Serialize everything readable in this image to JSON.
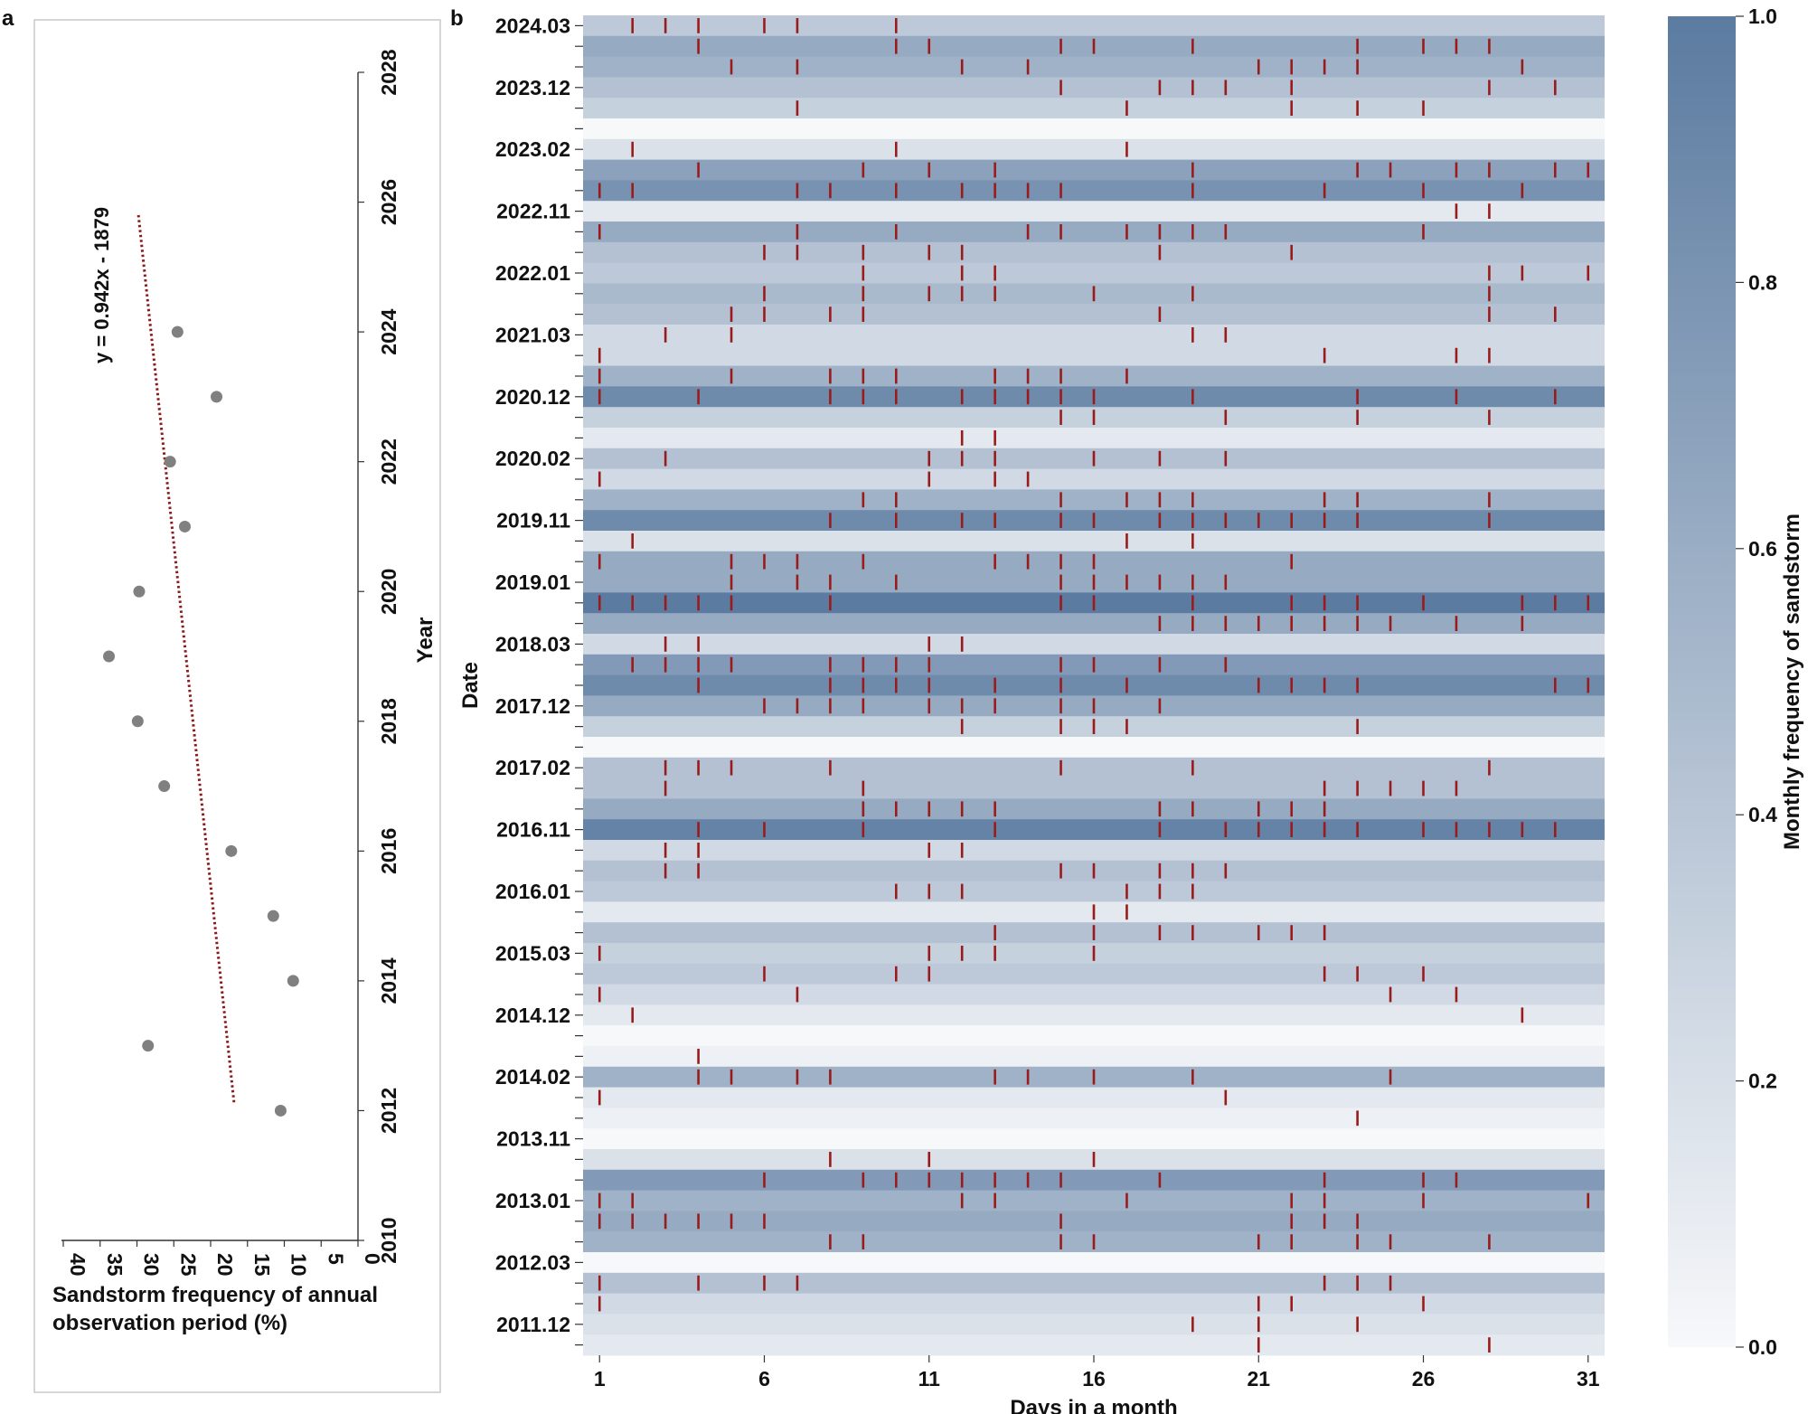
{
  "chart_data": [
    {
      "panel": "a",
      "type": "scatter",
      "xlabel_lines": [
        "Sandstorm frequency of annual",
        "observation period (%)"
      ],
      "ylabel": "Year",
      "xlim": [
        0,
        40
      ],
      "ylim": [
        2010,
        2028
      ],
      "x_reversed": true,
      "xticks": [
        "40",
        "35",
        "30",
        "25",
        "20",
        "15",
        "10",
        "5",
        "0"
      ],
      "yticks": [
        "2010",
        "2012",
        "2014",
        "2016",
        "2018",
        "2020",
        "2022",
        "2024",
        "2026",
        "2028"
      ],
      "points": [
        {
          "year": 2012,
          "value": 10.5
        },
        {
          "year": 2013,
          "value": 28.5
        },
        {
          "year": 2014,
          "value": 8.8
        },
        {
          "year": 2015,
          "value": 11.5
        },
        {
          "year": 2016,
          "value": 17.2
        },
        {
          "year": 2017,
          "value": 26.3
        },
        {
          "year": 2018,
          "value": 29.9
        },
        {
          "year": 2019,
          "value": 33.8
        },
        {
          "year": 2020,
          "value": 29.7
        },
        {
          "year": 2021,
          "value": 23.5
        },
        {
          "year": 2022,
          "value": 25.5
        },
        {
          "year": 2023,
          "value": 19.2
        },
        {
          "year": 2024,
          "value": 24.5
        }
      ],
      "trend": {
        "equation": "y = 0.942x - 1879",
        "x_start": 29.8,
        "y_start": 2025.8,
        "x_end": 16.8,
        "y_end": 2012.1,
        "color": "#8b1a1a"
      },
      "point_color": "#808080"
    },
    {
      "panel": "b",
      "type": "heatmap",
      "xlabel": "Days in a month",
      "ylabel": "Date",
      "xticks": [
        "1",
        "6",
        "11",
        "16",
        "21",
        "26",
        "31"
      ],
      "colorbar": {
        "label": "Monthly frequency of sandstorm",
        "ticks": [
          "0.0",
          "0.2",
          "0.4",
          "0.6",
          "0.8",
          "1.0"
        ],
        "color_low": "#f7f8fa",
        "color_high": "#5b7ba0"
      },
      "mark_color": "#9a1b1b",
      "rows": [
        {
          "label": "2024.03",
          "days": [
            2,
            3,
            4,
            6,
            7,
            10
          ]
        },
        {
          "label": "",
          "days": [
            4,
            10,
            11,
            15,
            16,
            19,
            24,
            26,
            27,
            28
          ]
        },
        {
          "label": "",
          "days": [
            5,
            7,
            12,
            14,
            21,
            22,
            23,
            24,
            29
          ]
        },
        {
          "label": "2023.12",
          "days": [
            15,
            18,
            19,
            20,
            22,
            28,
            30
          ]
        },
        {
          "label": "",
          "days": [
            7,
            17,
            22,
            24,
            26
          ]
        },
        {
          "label": "",
          "days": []
        },
        {
          "label": "2023.02",
          "days": [
            2,
            10,
            17
          ]
        },
        {
          "label": "",
          "days": [
            4,
            9,
            11,
            13,
            19,
            24,
            25,
            27,
            28,
            30,
            31
          ]
        },
        {
          "label": "",
          "days": [
            1,
            2,
            7,
            8,
            10,
            12,
            13,
            14,
            15,
            19,
            23,
            26,
            29
          ]
        },
        {
          "label": "2022.11",
          "days": [
            27,
            28
          ]
        },
        {
          "label": "",
          "days": [
            1,
            7,
            10,
            14,
            15,
            17,
            18,
            19,
            20,
            26
          ]
        },
        {
          "label": "",
          "days": [
            6,
            7,
            9,
            11,
            12,
            18,
            22
          ]
        },
        {
          "label": "2022.01",
          "days": [
            9,
            12,
            13,
            28,
            29,
            31
          ]
        },
        {
          "label": "",
          "days": [
            6,
            9,
            11,
            12,
            13,
            16,
            19,
            28
          ]
        },
        {
          "label": "",
          "days": [
            5,
            6,
            8,
            9,
            18,
            28,
            30
          ]
        },
        {
          "label": "2021.03",
          "days": [
            3,
            5,
            19,
            20
          ]
        },
        {
          "label": "",
          "days": [
            1,
            23,
            27,
            28
          ]
        },
        {
          "label": "",
          "days": [
            1,
            5,
            8,
            9,
            10,
            13,
            14,
            15,
            17
          ]
        },
        {
          "label": "2020.12",
          "days": [
            1,
            4,
            8,
            9,
            10,
            12,
            13,
            14,
            15,
            16,
            19,
            24,
            27,
            30
          ]
        },
        {
          "label": "",
          "days": [
            15,
            16,
            20,
            24,
            28
          ]
        },
        {
          "label": "",
          "days": [
            12,
            13
          ]
        },
        {
          "label": "2020.02",
          "days": [
            3,
            11,
            12,
            13,
            16,
            18,
            20
          ]
        },
        {
          "label": "",
          "days": [
            1,
            11,
            13,
            14
          ]
        },
        {
          "label": "",
          "days": [
            9,
            10,
            15,
            17,
            18,
            19,
            23,
            24,
            28
          ]
        },
        {
          "label": "2019.11",
          "days": [
            8,
            10,
            12,
            13,
            15,
            16,
            18,
            19,
            20,
            21,
            22,
            23,
            24,
            28
          ]
        },
        {
          "label": "",
          "days": [
            2,
            17,
            19
          ]
        },
        {
          "label": "",
          "days": [
            1,
            5,
            6,
            7,
            9,
            13,
            14,
            15,
            16,
            22
          ]
        },
        {
          "label": "2019.01",
          "days": [
            5,
            7,
            8,
            10,
            15,
            16,
            17,
            18,
            19,
            20
          ]
        },
        {
          "label": "",
          "days": [
            1,
            2,
            3,
            4,
            5,
            8,
            15,
            16,
            19,
            22,
            23,
            24,
            26,
            29,
            30,
            31
          ]
        },
        {
          "label": "",
          "days": [
            18,
            19,
            20,
            21,
            22,
            23,
            24,
            25,
            27,
            29
          ]
        },
        {
          "label": "2018.03",
          "days": [
            3,
            4,
            11,
            12
          ]
        },
        {
          "label": "",
          "days": [
            2,
            3,
            4,
            5,
            8,
            9,
            10,
            11,
            15,
            16,
            18,
            20
          ]
        },
        {
          "label": "",
          "days": [
            4,
            8,
            9,
            10,
            11,
            13,
            15,
            17,
            21,
            22,
            23,
            24,
            30,
            31
          ]
        },
        {
          "label": "2017.12",
          "days": [
            6,
            7,
            8,
            9,
            11,
            12,
            13,
            15,
            16,
            18
          ]
        },
        {
          "label": "",
          "days": [
            12,
            15,
            16,
            17,
            24
          ]
        },
        {
          "label": "",
          "days": []
        },
        {
          "label": "2017.02",
          "days": [
            3,
            4,
            5,
            8,
            15,
            19,
            28
          ]
        },
        {
          "label": "",
          "days": [
            3,
            9,
            23,
            24,
            25,
            26,
            27
          ]
        },
        {
          "label": "",
          "days": [
            9,
            10,
            11,
            12,
            13,
            18,
            19,
            21,
            22,
            23
          ]
        },
        {
          "label": "2016.11",
          "days": [
            4,
            6,
            9,
            13,
            18,
            20,
            21,
            22,
            23,
            24,
            26,
            27,
            28,
            29,
            30
          ]
        },
        {
          "label": "",
          "days": [
            3,
            4,
            11,
            12
          ]
        },
        {
          "label": "",
          "days": [
            3,
            4,
            15,
            16,
            18,
            19,
            20
          ]
        },
        {
          "label": "2016.01",
          "days": [
            10,
            11,
            12,
            17,
            18,
            19
          ]
        },
        {
          "label": "",
          "days": [
            16,
            17
          ]
        },
        {
          "label": "",
          "days": [
            13,
            16,
            18,
            19,
            21,
            22,
            23
          ]
        },
        {
          "label": "2015.03",
          "days": [
            1,
            11,
            12,
            13,
            16
          ]
        },
        {
          "label": "",
          "days": [
            6,
            10,
            11,
            23,
            24,
            26
          ]
        },
        {
          "label": "",
          "days": [
            1,
            7,
            25,
            27
          ]
        },
        {
          "label": "2014.12",
          "days": [
            2,
            29
          ]
        },
        {
          "label": "",
          "days": []
        },
        {
          "label": "",
          "days": [
            4
          ]
        },
        {
          "label": "2014.02",
          "days": [
            4,
            5,
            7,
            8,
            13,
            14,
            16,
            19,
            25
          ]
        },
        {
          "label": "",
          "days": [
            1,
            20
          ]
        },
        {
          "label": "",
          "days": [
            24
          ]
        },
        {
          "label": "2013.11",
          "days": []
        },
        {
          "label": "",
          "days": [
            8,
            11,
            16
          ]
        },
        {
          "label": "",
          "days": [
            6,
            9,
            10,
            11,
            12,
            13,
            14,
            15,
            18,
            23,
            26,
            27
          ]
        },
        {
          "label": "2013.01",
          "days": [
            1,
            2,
            12,
            13,
            17,
            22,
            23,
            26,
            31
          ]
        },
        {
          "label": "",
          "days": [
            1,
            2,
            3,
            4,
            5,
            6,
            15,
            22,
            23,
            24
          ]
        },
        {
          "label": "",
          "days": [
            8,
            9,
            15,
            16,
            21,
            22,
            24,
            25,
            28
          ]
        },
        {
          "label": "2012.03",
          "days": []
        },
        {
          "label": "",
          "days": [
            1,
            4,
            6,
            7,
            23,
            24,
            25
          ]
        },
        {
          "label": "",
          "days": [
            1,
            21,
            22,
            26
          ]
        },
        {
          "label": "2011.12",
          "days": [
            19,
            21,
            24
          ]
        },
        {
          "label": "",
          "days": [
            21,
            28
          ]
        }
      ]
    }
  ]
}
